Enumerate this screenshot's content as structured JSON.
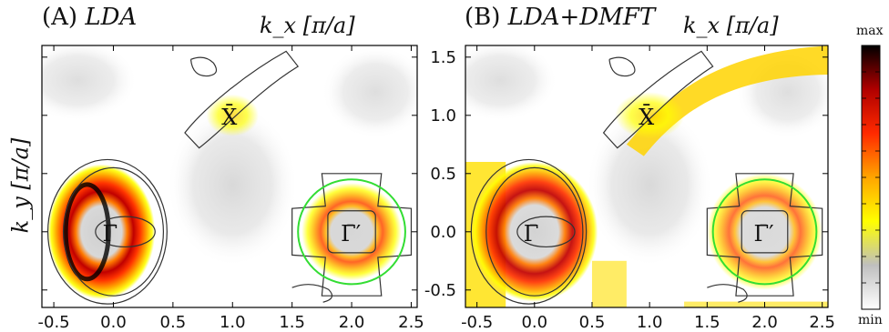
{
  "figure": {
    "panel_a": {
      "letter": "(A)",
      "method": "LDA"
    },
    "panel_b": {
      "letter": "(B)",
      "method": "LDA+DMFT"
    },
    "xlabel": "k_x [π/a]",
    "ylabel": "k_y [π/a]",
    "colorbar": {
      "max_label": "max",
      "min_label": "min",
      "colors": [
        "#ffffff",
        "#bfbfbf",
        "#ffff00",
        "#ffa500",
        "#ff2a00",
        "#b00000",
        "#000000"
      ]
    },
    "points": [
      "X̄",
      "Γ̄",
      "Γ̄′"
    ]
  },
  "chart_data": [
    {
      "type": "heatmap",
      "title": "(A) LDA",
      "xlabel": "k_x [π/a]",
      "ylabel": "k_y [π/a]",
      "xlim": [
        -0.6,
        2.55
      ],
      "ylim": [
        -0.65,
        1.6
      ],
      "xticks": [
        -0.5,
        0.0,
        0.5,
        1.0,
        1.5,
        2.0,
        2.5
      ],
      "yticks": [
        -0.5,
        0.0,
        0.5,
        1.0,
        1.5
      ],
      "high_symmetry_points": [
        {
          "label": "Γ̄",
          "x": 0.0,
          "y": 0.0
        },
        {
          "label": "X̄",
          "x": 1.0,
          "y": 1.0
        },
        {
          "label": "Γ̄′",
          "x": 2.0,
          "y": 0.0
        }
      ],
      "spectral_features": [
        {
          "center": [
            -0.1,
            0.0
          ],
          "rx": 0.45,
          "ry": 0.58,
          "intensity": 0.9,
          "kind": "ring"
        },
        {
          "center": [
            2.0,
            0.0
          ],
          "rx": 0.42,
          "ry": 0.42,
          "intensity": 0.6,
          "kind": "ring"
        },
        {
          "center": [
            1.0,
            1.0
          ],
          "rx": 0.22,
          "ry": 0.18,
          "intensity": 0.35,
          "kind": "blob"
        }
      ],
      "colorbar_range": [
        "min",
        "max"
      ]
    },
    {
      "type": "heatmap",
      "title": "(B) LDA+DMFT",
      "xlabel": "k_x [π/a]",
      "ylabel": "k_y [π/a]",
      "xlim": [
        -0.6,
        2.55
      ],
      "ylim": [
        -0.65,
        1.6
      ],
      "xticks": [
        -0.5,
        0.0,
        0.5,
        1.0,
        1.5,
        2.0,
        2.5
      ],
      "yticks": [
        -0.5,
        0.0,
        0.5,
        1.0,
        1.5
      ],
      "high_symmetry_points": [
        {
          "label": "Γ̄",
          "x": 0.0,
          "y": 0.0
        },
        {
          "label": "X̄",
          "x": 1.0,
          "y": 1.0
        },
        {
          "label": "Γ̄′",
          "x": 2.0,
          "y": 0.0
        }
      ],
      "spectral_features": [
        {
          "center": [
            0.0,
            0.0
          ],
          "rx": 0.55,
          "ry": 0.6,
          "intensity": 0.75,
          "kind": "ring"
        },
        {
          "center": [
            2.0,
            0.0
          ],
          "rx": 0.5,
          "ry": 0.5,
          "intensity": 0.45,
          "kind": "ring"
        },
        {
          "center": [
            1.0,
            1.0
          ],
          "rx": 0.3,
          "ry": 0.2,
          "intensity": 0.4,
          "kind": "blob"
        }
      ],
      "colorbar_range": [
        "min",
        "max"
      ]
    }
  ]
}
